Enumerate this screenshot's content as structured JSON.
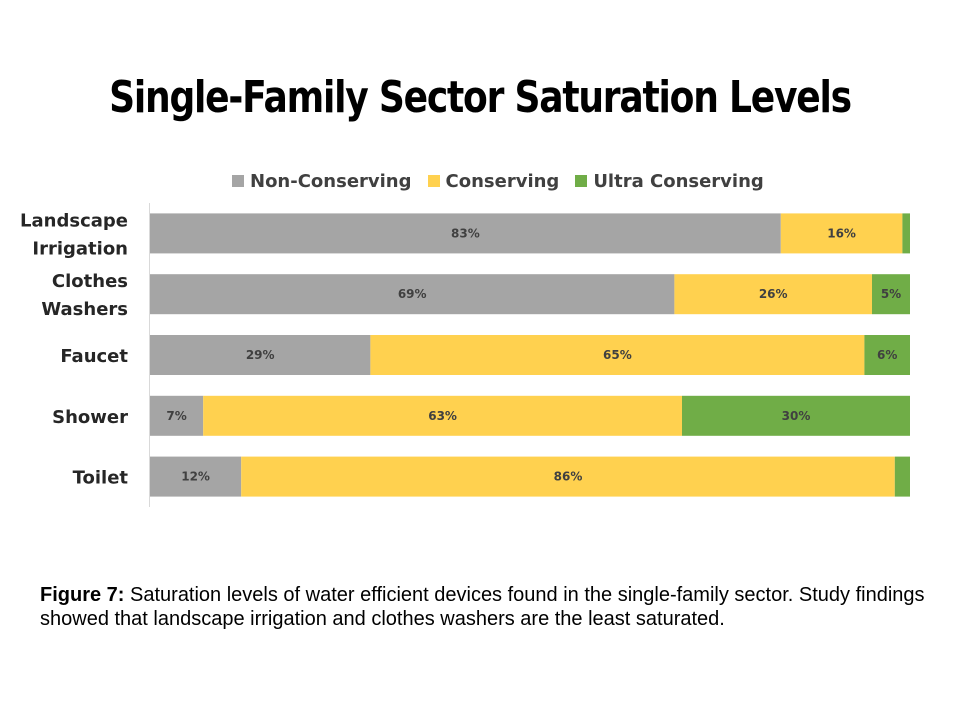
{
  "title": "Single-Family Sector Saturation Levels",
  "caption": {
    "label": "Figure 7:",
    "text": " Saturation levels of water efficient devices found in the single-family sector. Study findings showed that landscape irrigation and clothes washers are the least saturated."
  },
  "chart_data": {
    "type": "bar",
    "orientation": "horizontal",
    "stacked": true,
    "legend_position": "top",
    "grid": false,
    "xlim": [
      0,
      100
    ],
    "categories": [
      [
        "Landscape",
        "Irrigation"
      ],
      [
        "Clothes",
        "Washers"
      ],
      [
        "Faucet"
      ],
      [
        "Shower"
      ],
      [
        "Toilet"
      ]
    ],
    "series": [
      {
        "name": "Non-Conserving",
        "color": "#A5A5A5",
        "values": [
          83,
          69,
          29,
          7,
          12
        ],
        "labels": [
          "83%",
          "69%",
          "29%",
          "7%",
          "12%"
        ]
      },
      {
        "name": "Conserving",
        "color": "#FFD14F",
        "values": [
          16,
          26,
          65,
          63,
          86
        ],
        "labels": [
          "16%",
          "26%",
          "65%",
          "63%",
          "86%"
        ]
      },
      {
        "name": "Ultra Conserving",
        "color": "#70AD47",
        "values": [
          1,
          5,
          6,
          30,
          2
        ],
        "labels": [
          "",
          "5%",
          "6%",
          "30%",
          ""
        ]
      }
    ]
  }
}
